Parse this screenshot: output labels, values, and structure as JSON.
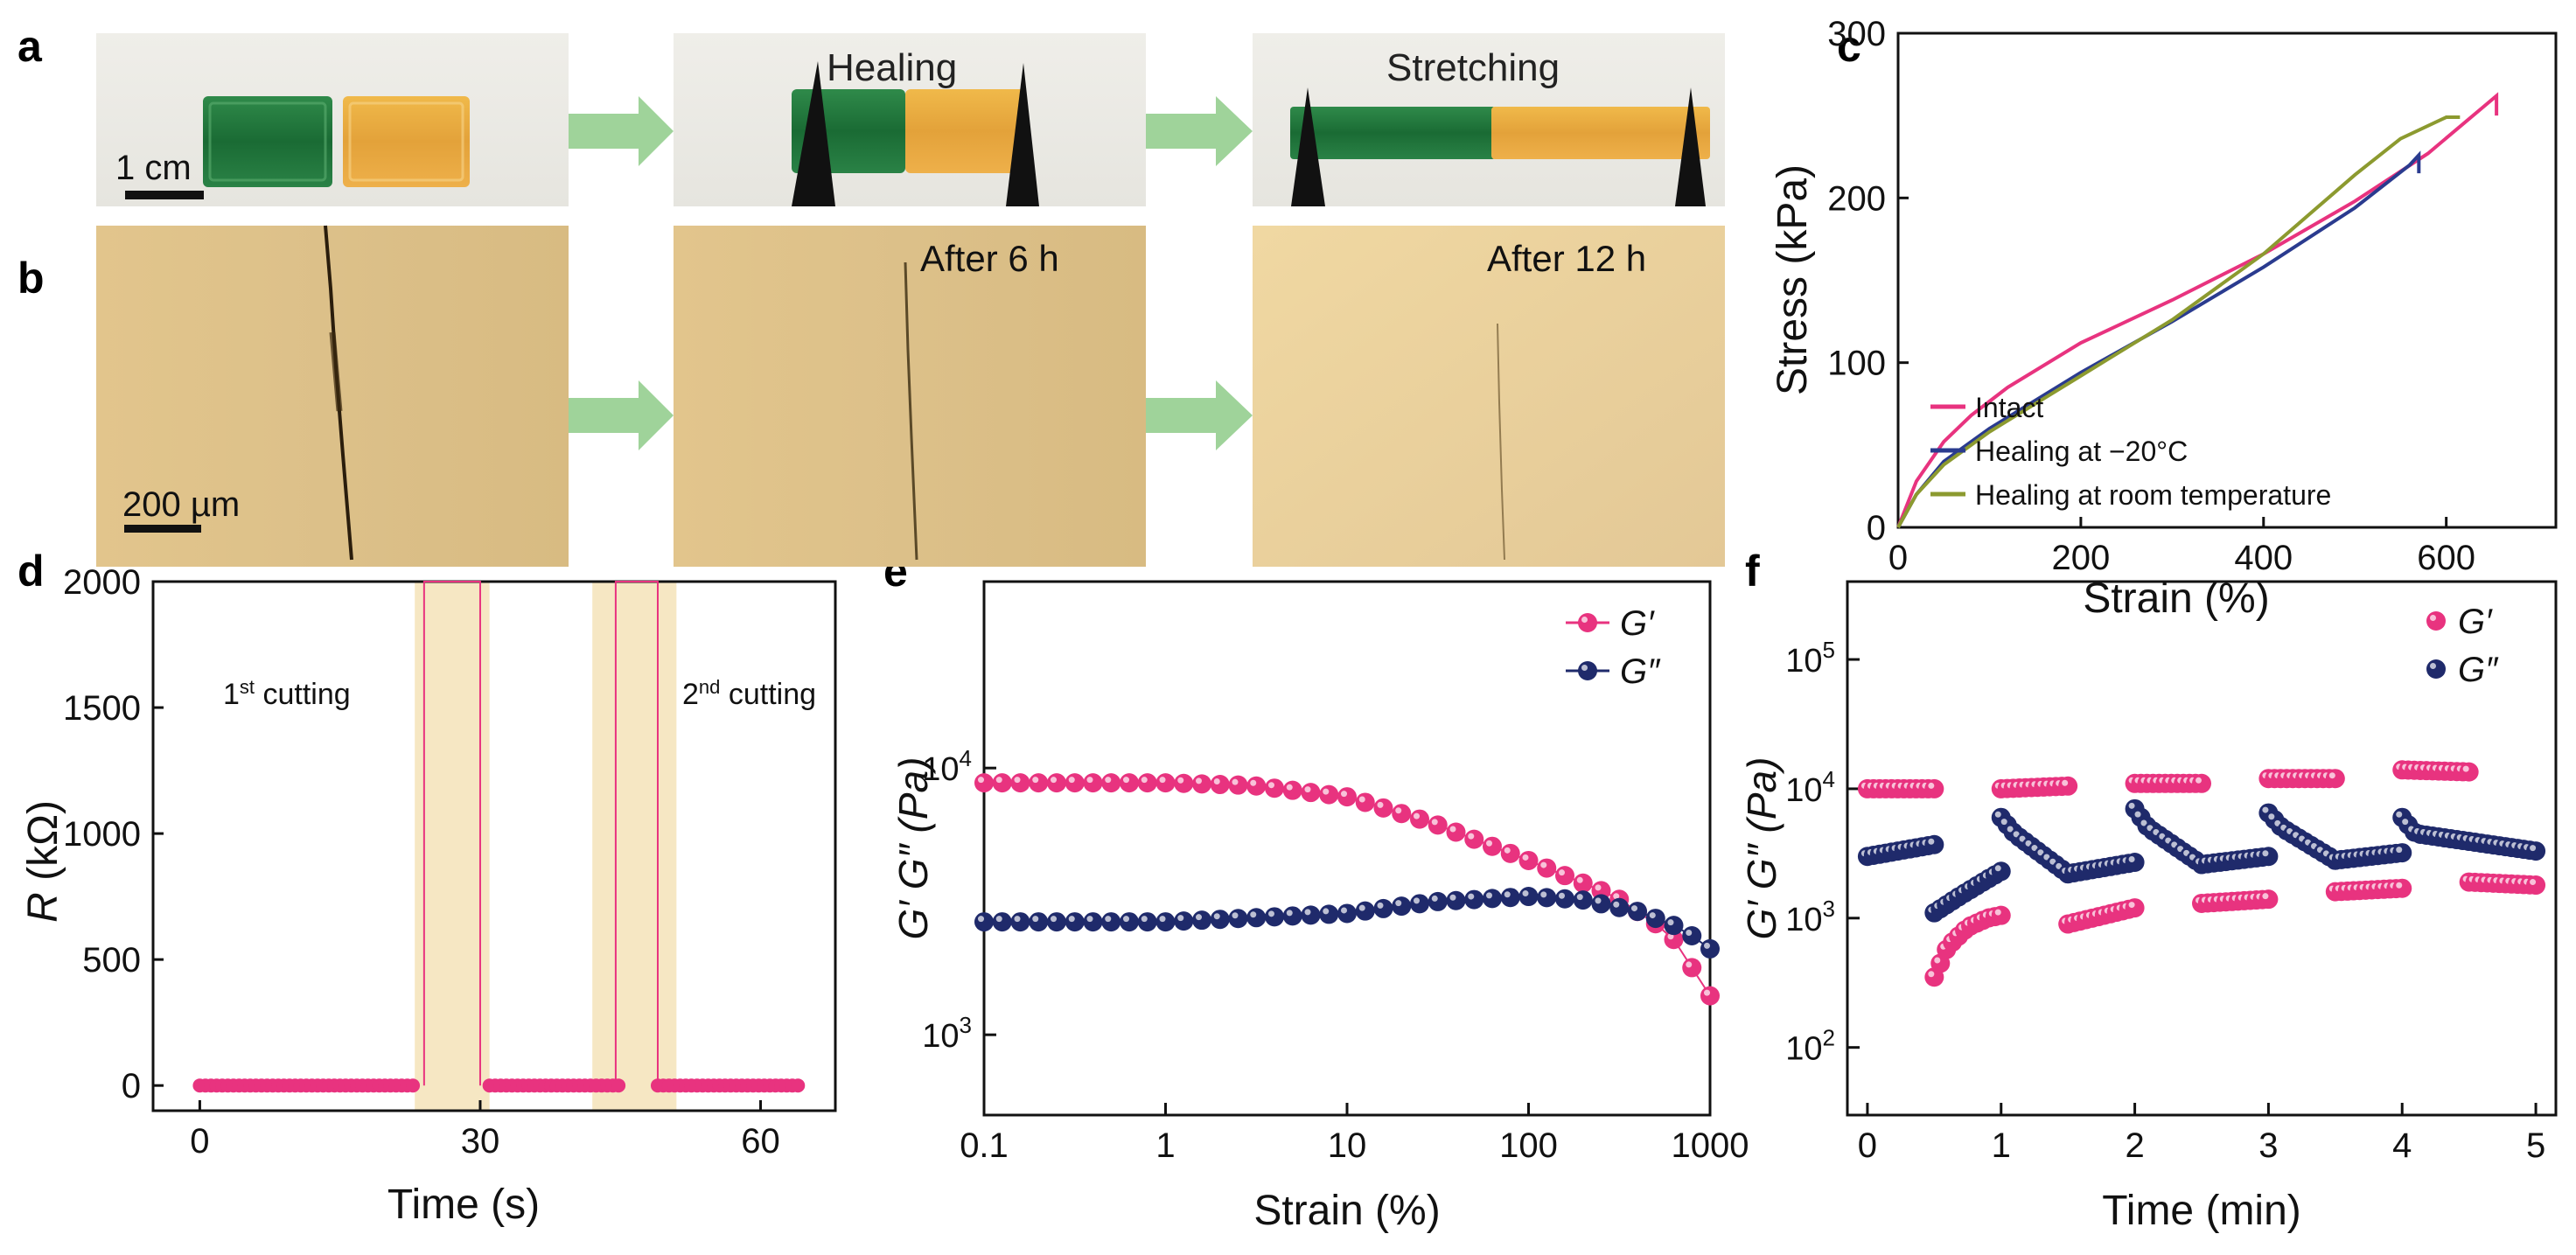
{
  "panel_labels": {
    "a": "a",
    "b": "b",
    "c": "c",
    "d": "d",
    "e": "e",
    "f": "f"
  },
  "photos": {
    "a_scale": "1 cm",
    "a_healing": "Healing",
    "a_stretching": "Stretching",
    "b_scale": "200 µm",
    "b_after6": "After 6 h",
    "b_after12": "After 12 h"
  },
  "colors": {
    "pink": "#e8337f",
    "navy": "#1f2a6b",
    "olive": "#8c9a2f",
    "blue": "#2a3b8f",
    "shade": "#f6e7c3",
    "arrow": "#9fd39a"
  },
  "chart_data": [
    {
      "id": "c",
      "type": "line",
      "title": "",
      "xlabel": "Strain (%)",
      "ylabel": "Stress (kPa)",
      "xlim": [
        0,
        720
      ],
      "ylim": [
        0,
        300
      ],
      "xticks": [
        0,
        200,
        400,
        600
      ],
      "yticks": [
        0,
        100,
        200,
        300
      ],
      "legend_position": "bottom-right",
      "series": [
        {
          "name": "Intact",
          "color": "#e8337f",
          "x": [
            0,
            20,
            50,
            80,
            120,
            200,
            300,
            400,
            500,
            580,
            640,
            655,
            655
          ],
          "y": [
            0,
            28,
            52,
            68,
            85,
            112,
            138,
            166,
            198,
            227,
            255,
            262,
            250
          ]
        },
        {
          "name": "Healing at −20°C",
          "color": "#2a3b8f",
          "x": [
            0,
            20,
            50,
            100,
            200,
            300,
            400,
            500,
            560,
            570,
            570
          ],
          "y": [
            0,
            20,
            40,
            60,
            94,
            125,
            158,
            194,
            220,
            226,
            215
          ]
        },
        {
          "name": "Healing at room temperature",
          "color": "#8c9a2f",
          "x": [
            0,
            20,
            50,
            100,
            200,
            300,
            400,
            450,
            500,
            550,
            600,
            615
          ],
          "y": [
            0,
            20,
            38,
            58,
            92,
            126,
            166,
            190,
            214,
            236,
            249,
            249
          ]
        }
      ]
    },
    {
      "id": "d",
      "type": "scatter",
      "title": "",
      "xlabel": "Time (s)",
      "ylabel_italic": "R",
      "ylabel_rest": " (kΩ)",
      "xlim": [
        -5,
        68
      ],
      "ylim": [
        -100,
        2000
      ],
      "xticks": [
        0,
        30,
        60
      ],
      "yticks": [
        0,
        500,
        1000,
        1500,
        2000
      ],
      "annotation_1_main": "1",
      "annotation_1_sup": "st",
      "annotation_1_rest": " cutting",
      "annotation_2_main": "2",
      "annotation_2_sup": "nd",
      "annotation_2_rest": " cutting",
      "shaded_regions": [
        [
          23,
          31
        ],
        [
          42,
          51
        ]
      ],
      "segments": [
        [
          0,
          23
        ],
        [
          31,
          45
        ],
        [
          49,
          64
        ]
      ],
      "spikes": [
        [
          24,
          30
        ],
        [
          44.5,
          49
        ]
      ],
      "point_step": 0.6,
      "value": 0
    },
    {
      "id": "e",
      "type": "scatter",
      "title": "",
      "xlabel": "Strain (%)",
      "ylabel": "G′ G″ (Pa)",
      "xscale": "log",
      "yscale": "log",
      "xlim": [
        0.1,
        1000
      ],
      "ylim": [
        500,
        50000
      ],
      "xticks": [
        "0.1",
        "1",
        "10",
        "100",
        "1000"
      ],
      "ytick_base": "10",
      "ytick_exps": [
        "3",
        "4"
      ],
      "ytick_values": [
        1000,
        10000
      ],
      "legend_position": "top-right",
      "series": [
        {
          "name": "G′",
          "color": "#e8337f",
          "x": [
            0.1,
            1,
            3,
            10,
            30,
            100,
            300,
            600,
            1000
          ],
          "y": [
            8800,
            8800,
            8600,
            7800,
            6200,
            4500,
            3300,
            2400,
            1400
          ]
        },
        {
          "name": "G″",
          "color": "#1f2a6b",
          "x": [
            0.1,
            1,
            10,
            30,
            100,
            200,
            400,
            700,
            1000
          ],
          "y": [
            2650,
            2650,
            2850,
            3150,
            3300,
            3200,
            2900,
            2500,
            2100
          ]
        }
      ]
    },
    {
      "id": "f",
      "type": "scatter",
      "title": "",
      "xlabel": "Time (min)",
      "ylabel": "G′ G″ (Pa)",
      "yscale": "log",
      "xlim": [
        -0.15,
        5.15
      ],
      "ylim": [
        30,
        400000
      ],
      "xticks": [
        "0",
        "1",
        "2",
        "3",
        "4",
        "5"
      ],
      "ytick_base": "10",
      "ytick_exps": [
        "2",
        "3",
        "4",
        "5"
      ],
      "ytick_values": [
        100,
        1000,
        10000,
        100000
      ],
      "legend_position": "top-right",
      "series": [
        {
          "name": "G′",
          "color": "#e8337f",
          "segments": [
            {
              "x": [
                0,
                0.5
              ],
              "y": [
                10000,
                10000
              ]
            },
            {
              "x": [
                0.5,
                0.6,
                0.75,
                0.9,
                1.0
              ],
              "y": [
                350,
                600,
                850,
                1000,
                1050
              ]
            },
            {
              "x": [
                1.0,
                1.5
              ],
              "y": [
                10000,
                10500
              ]
            },
            {
              "x": [
                1.5,
                2.0
              ],
              "y": [
                900,
                1200
              ]
            },
            {
              "x": [
                2.0,
                2.5
              ],
              "y": [
                11000,
                11000
              ]
            },
            {
              "x": [
                2.5,
                3.0
              ],
              "y": [
                1300,
                1400
              ]
            },
            {
              "x": [
                3.0,
                3.5
              ],
              "y": [
                12000,
                12000
              ]
            },
            {
              "x": [
                3.5,
                4.0
              ],
              "y": [
                1600,
                1700
              ]
            },
            {
              "x": [
                4.0,
                4.5
              ],
              "y": [
                14000,
                13500
              ]
            },
            {
              "x": [
                4.5,
                5.0
              ],
              "y": [
                1900,
                1800
              ]
            }
          ]
        },
        {
          "name": "G″",
          "color": "#1f2a6b",
          "segments": [
            {
              "x": [
                0,
                0.5
              ],
              "y": [
                3000,
                3700
              ]
            },
            {
              "x": [
                0.5,
                0.7,
                0.9,
                1.0
              ],
              "y": [
                1100,
                1500,
                2000,
                2300
              ]
            },
            {
              "x": [
                1.0,
                1.1,
                1.5
              ],
              "y": [
                6000,
                4500,
                2200
              ]
            },
            {
              "x": [
                1.5,
                2.0
              ],
              "y": [
                2200,
                2700
              ]
            },
            {
              "x": [
                2.0,
                2.1,
                2.5
              ],
              "y": [
                7000,
                5000,
                2600
              ]
            },
            {
              "x": [
                2.5,
                3.0
              ],
              "y": [
                2600,
                3000
              ]
            },
            {
              "x": [
                3.0,
                3.1,
                3.5
              ],
              "y": [
                6500,
                5000,
                2800
              ]
            },
            {
              "x": [
                3.5,
                4.0
              ],
              "y": [
                2800,
                3200
              ]
            },
            {
              "x": [
                4.0,
                4.1,
                5.0
              ],
              "y": [
                6000,
                4500,
                3300
              ]
            }
          ]
        }
      ]
    }
  ]
}
